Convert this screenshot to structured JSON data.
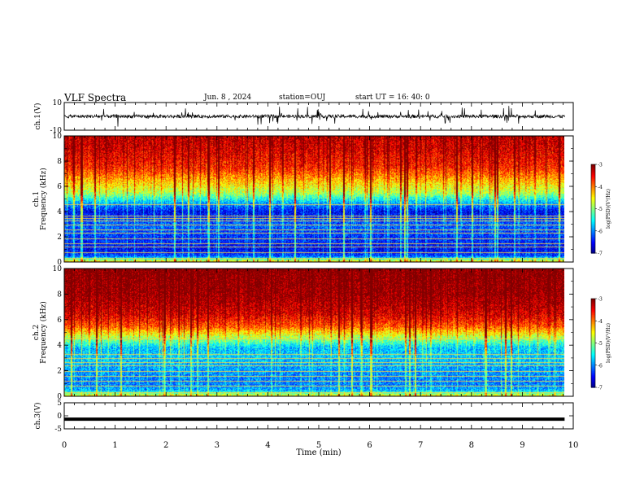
{
  "header": {
    "title": "VLF Spectra",
    "date": "Jun. 8 , 2024",
    "station": "station=OUJ",
    "start_ut": "start UT = 16: 40: 0"
  },
  "chart_data": [
    {
      "type": "line",
      "panel": "ch1-waveform",
      "ylabel": "ch.1(V)",
      "ylim": [
        -10,
        10
      ],
      "yticks": [
        "10",
        "-10"
      ],
      "xlim": [
        0,
        9.83
      ],
      "description_values": {
        "baseline": 0,
        "typical_spike_range": [
          -7,
          7
        ]
      },
      "color": "#000000"
    },
    {
      "type": "heatmap",
      "panel": "ch1-spectrogram",
      "ylabel": "ch.1\nFrequency (kHz)",
      "ylim": [
        0,
        10
      ],
      "yticks": [
        "0",
        "2",
        "4",
        "6",
        "8",
        "10"
      ],
      "xlim": [
        0,
        9.83
      ],
      "colorbar": {
        "label": "log(PSD)(V²/Hz)",
        "ticks": [
          "-3",
          "-4",
          "-5",
          "-6",
          "-7"
        ],
        "range": [
          -7,
          -3
        ]
      },
      "band_profile": {
        "freq_khz": [
          0,
          0.5,
          1,
          2,
          3,
          4,
          4.7,
          5.5,
          6.5,
          7.5,
          9,
          10
        ],
        "log_psd": [
          -4.2,
          -6.3,
          -6.6,
          -6.4,
          -6.2,
          -6.7,
          -6.0,
          -5.0,
          -4.4,
          -3.8,
          -3.5,
          -3.4
        ]
      },
      "lines_khz": [
        0.3,
        0.8,
        1.2,
        1.5,
        1.9,
        2.3,
        2.6,
        3.0,
        3.3,
        3.5,
        3.7,
        4.6
      ]
    },
    {
      "type": "heatmap",
      "panel": "ch2-spectrogram",
      "ylabel": "ch.2\nFrequency (kHz)",
      "ylim": [
        0,
        10
      ],
      "yticks": [
        "0",
        "2",
        "4",
        "6",
        "8",
        "10"
      ],
      "xlim": [
        0,
        9.83
      ],
      "colorbar": {
        "label": "log(PSD)(V²/Hz)",
        "ticks": [
          "-3",
          "-4",
          "-5",
          "-6",
          "-7"
        ],
        "range": [
          -7,
          -3
        ]
      },
      "band_profile": {
        "freq_khz": [
          0,
          0.5,
          1,
          2,
          3,
          3.8,
          4.6,
          5.5,
          6.5,
          8,
          10
        ],
        "log_psd": [
          -4.4,
          -5.9,
          -6.1,
          -6.0,
          -5.8,
          -5.9,
          -5.0,
          -4.0,
          -3.5,
          -3.2,
          -3.1
        ]
      },
      "lines_khz": [
        0.3,
        0.8,
        1.2,
        1.6,
        2.0,
        2.4,
        2.7,
        3.0,
        3.3,
        4.5
      ]
    },
    {
      "type": "line",
      "panel": "ch3-waveform",
      "ylabel": "ch.3(V)",
      "ylim": [
        -5,
        5
      ],
      "yticks": [
        "5",
        "0",
        "-5"
      ],
      "xlim": [
        0,
        9.83
      ],
      "description_values": {
        "level": -1.3
      },
      "color": "#000000"
    }
  ],
  "x_axis": {
    "label": "Time (min)",
    "ticks": [
      "0",
      "1",
      "2",
      "3",
      "4",
      "5",
      "6",
      "7",
      "8",
      "9",
      "10"
    ],
    "range": [
      0,
      10
    ]
  }
}
